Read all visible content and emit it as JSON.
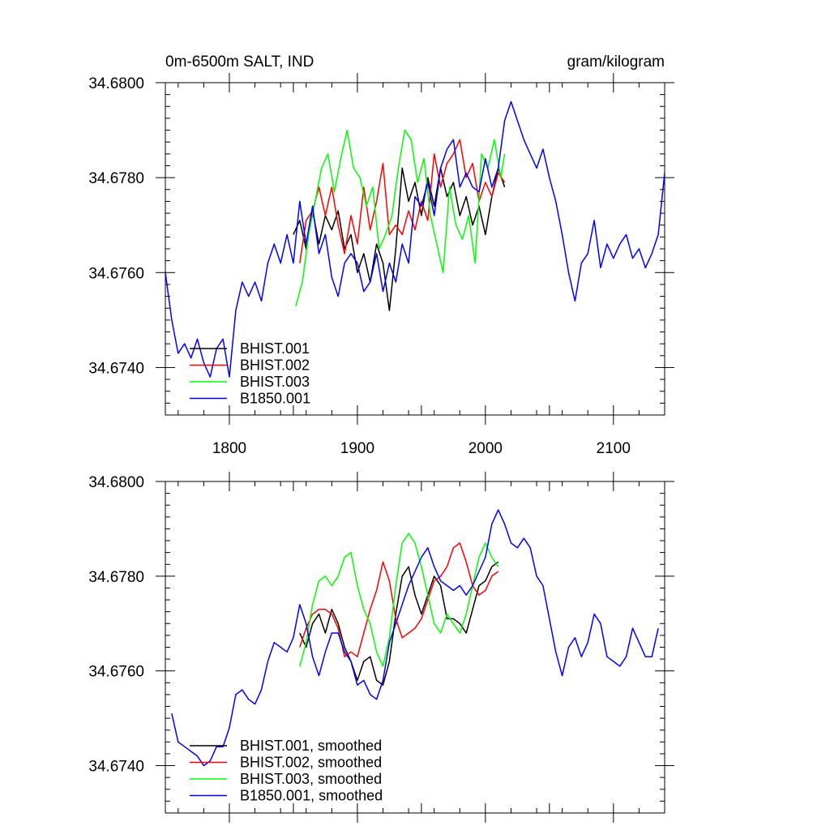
{
  "chart_data": [
    {
      "type": "line",
      "title_left": "0m-6500m SALT, IND",
      "title_right": "gram/kilogram",
      "xlim": [
        1750,
        2140
      ],
      "ylim": [
        34.673,
        34.68
      ],
      "xticks": [
        1800,
        1900,
        2000,
        2100
      ],
      "xtick_labels": [
        "1800",
        "1900",
        "2000",
        "2100"
      ],
      "yticks": [
        34.674,
        34.676,
        34.678,
        34.68
      ],
      "ytick_labels": [
        "34.6740",
        "34.6760",
        "34.6780",
        "34.6800"
      ],
      "legend_position": "bottom-left",
      "series": [
        {
          "name": "BHIST.001",
          "color": "#000000",
          "x": [
            1850,
            1855,
            1860,
            1865,
            1870,
            1875,
            1880,
            1885,
            1890,
            1895,
            1900,
            1905,
            1910,
            1915,
            1920,
            1925,
            1930,
            1935,
            1940,
            1945,
            1950,
            1955,
            1960,
            1965,
            1970,
            1975,
            1980,
            1985,
            1990,
            1995,
            2000,
            2005,
            2010,
            2015
          ],
          "y": [
            34.6768,
            34.6771,
            34.6765,
            34.6773,
            34.6766,
            34.6772,
            34.6769,
            34.6773,
            34.6765,
            34.6768,
            34.676,
            34.6764,
            34.6758,
            34.6766,
            34.6762,
            34.6752,
            34.6765,
            34.6782,
            34.6775,
            34.6779,
            34.6772,
            34.678,
            34.6774,
            34.6782,
            34.6776,
            34.6779,
            34.6772,
            34.6776,
            34.677,
            34.6774,
            34.6768,
            34.6776,
            34.6782,
            34.6778
          ]
        },
        {
          "name": "BHIST.002",
          "color": "#ff0000",
          "x": [
            1855,
            1860,
            1865,
            1870,
            1875,
            1880,
            1885,
            1890,
            1895,
            1900,
            1905,
            1910,
            1915,
            1920,
            1925,
            1930,
            1935,
            1940,
            1945,
            1950,
            1955,
            1960,
            1965,
            1970,
            1975,
            1980,
            1985,
            1990,
            1995,
            2000,
            2005,
            2010,
            2015
          ],
          "y": [
            34.6762,
            34.6771,
            34.6773,
            34.6778,
            34.6772,
            34.6778,
            34.677,
            34.6764,
            34.6772,
            34.6766,
            34.6778,
            34.6769,
            34.6775,
            34.6783,
            34.6768,
            34.677,
            34.6768,
            34.6773,
            34.6769,
            34.6775,
            34.6771,
            34.6785,
            34.6778,
            34.6783,
            34.6785,
            34.6788,
            34.678,
            34.6783,
            34.6775,
            34.6779,
            34.6776,
            34.6781,
            34.6779
          ]
        },
        {
          "name": "BHIST.003",
          "color": "#00ff00",
          "x": [
            1852,
            1857,
            1862,
            1867,
            1872,
            1877,
            1882,
            1887,
            1892,
            1897,
            1902,
            1907,
            1912,
            1917,
            1922,
            1927,
            1932,
            1937,
            1942,
            1947,
            1952,
            1957,
            1962,
            1967,
            1972,
            1977,
            1982,
            1987,
            1992,
            1997,
            2002,
            2007,
            2012,
            2015
          ],
          "y": [
            34.6753,
            34.6758,
            34.6768,
            34.6775,
            34.6782,
            34.6785,
            34.6777,
            34.6784,
            34.679,
            34.6782,
            34.678,
            34.6774,
            34.6778,
            34.6765,
            34.6768,
            34.6772,
            34.6782,
            34.679,
            34.6788,
            34.6779,
            34.6784,
            34.6772,
            34.6766,
            34.676,
            34.6778,
            34.677,
            34.6767,
            34.6772,
            34.6762,
            34.6785,
            34.6782,
            34.6788,
            34.678,
            34.6785
          ]
        },
        {
          "name": "B1850.001",
          "color": "#0000ff",
          "x": [
            1750,
            1755,
            1760,
            1765,
            1770,
            1775,
            1780,
            1785,
            1790,
            1795,
            1800,
            1805,
            1810,
            1815,
            1820,
            1825,
            1830,
            1835,
            1840,
            1845,
            1850,
            1855,
            1860,
            1865,
            1870,
            1875,
            1880,
            1885,
            1890,
            1895,
            1900,
            1905,
            1910,
            1915,
            1920,
            1925,
            1930,
            1935,
            1940,
            1945,
            1950,
            1955,
            1960,
            1965,
            1970,
            1975,
            1980,
            1985,
            1990,
            1995,
            2000,
            2005,
            2010,
            2015,
            2020,
            2025,
            2030,
            2035,
            2040,
            2045,
            2050,
            2055,
            2060,
            2065,
            2070,
            2075,
            2080,
            2085,
            2090,
            2095,
            2100,
            2105,
            2110,
            2115,
            2120,
            2125,
            2130,
            2135,
            2140
          ],
          "y": [
            34.676,
            34.675,
            34.6743,
            34.6745,
            34.6742,
            34.6746,
            34.6741,
            34.6738,
            34.6744,
            34.6746,
            34.6738,
            34.6752,
            34.6758,
            34.6755,
            34.6758,
            34.6754,
            34.6762,
            34.6766,
            34.6762,
            34.6768,
            34.6762,
            34.6775,
            34.6766,
            34.6774,
            34.6764,
            34.6768,
            34.6759,
            34.6755,
            34.6762,
            34.6764,
            34.6762,
            34.6756,
            34.6758,
            34.6764,
            34.6756,
            34.6762,
            34.6758,
            34.6766,
            34.6762,
            34.6776,
            34.6774,
            34.6779,
            34.6772,
            34.6782,
            34.6786,
            34.6788,
            34.6778,
            34.6781,
            34.6778,
            34.6777,
            34.6784,
            34.6778,
            34.6782,
            34.6792,
            34.6796,
            34.6792,
            34.6788,
            34.6785,
            34.6782,
            34.6786,
            34.678,
            34.6775,
            34.6768,
            34.676,
            34.6754,
            34.6762,
            34.6764,
            34.6771,
            34.6761,
            34.6766,
            34.6763,
            34.6766,
            34.6768,
            34.6763,
            34.6765,
            34.6761,
            34.6764,
            34.6768,
            34.6781
          ]
        }
      ]
    },
    {
      "type": "line",
      "xlim": [
        1750,
        2140
      ],
      "ylim": [
        34.673,
        34.68
      ],
      "xticks": [
        1800,
        1900,
        2000,
        2100
      ],
      "yticks": [
        34.674,
        34.676,
        34.678,
        34.68
      ],
      "ytick_labels": [
        "34.6740",
        "34.6760",
        "34.6780",
        "34.6800"
      ],
      "legend_position": "bottom-left",
      "series": [
        {
          "name": "BHIST.001, smoothed",
          "color": "#000000",
          "x": [
            1855,
            1860,
            1865,
            1870,
            1875,
            1880,
            1885,
            1890,
            1895,
            1900,
            1905,
            1910,
            1915,
            1920,
            1925,
            1930,
            1935,
            1940,
            1945,
            1950,
            1955,
            1960,
            1965,
            1970,
            1975,
            1980,
            1985,
            1990,
            1995,
            2000,
            2005,
            2010
          ],
          "y": [
            34.6768,
            34.6765,
            34.677,
            34.6772,
            34.6768,
            34.6773,
            34.677,
            34.6765,
            34.6762,
            34.6758,
            34.6762,
            34.6763,
            34.6758,
            34.6757,
            34.6762,
            34.6772,
            34.678,
            34.6782,
            34.6776,
            34.6772,
            34.6776,
            34.678,
            34.6778,
            34.6771,
            34.6771,
            34.677,
            34.6768,
            34.6773,
            34.6778,
            34.6779,
            34.6782,
            34.6783
          ]
        },
        {
          "name": "BHIST.002, smoothed",
          "color": "#ff0000",
          "x": [
            1855,
            1860,
            1865,
            1870,
            1875,
            1880,
            1885,
            1890,
            1895,
            1900,
            1905,
            1910,
            1915,
            1920,
            1925,
            1930,
            1935,
            1940,
            1945,
            1950,
            1955,
            1960,
            1965,
            1970,
            1975,
            1980,
            1985,
            1990,
            1995,
            2000,
            2005,
            2010
          ],
          "y": [
            34.6765,
            34.6769,
            34.6772,
            34.6773,
            34.6773,
            34.6772,
            34.6769,
            34.6763,
            34.6764,
            34.6763,
            34.6768,
            34.6773,
            34.6777,
            34.6783,
            34.6779,
            34.6771,
            34.6767,
            34.6768,
            34.6769,
            34.6771,
            34.6775,
            34.6779,
            34.678,
            34.6782,
            34.6786,
            34.6787,
            34.6783,
            34.6778,
            34.6776,
            34.6777,
            34.678,
            34.6781
          ]
        },
        {
          "name": "BHIST.003, smoothed",
          "color": "#00ff00",
          "x": [
            1855,
            1860,
            1865,
            1870,
            1875,
            1880,
            1885,
            1890,
            1895,
            1900,
            1905,
            1910,
            1915,
            1920,
            1925,
            1930,
            1935,
            1940,
            1945,
            1950,
            1955,
            1960,
            1965,
            1970,
            1975,
            1980,
            1985,
            1990,
            1995,
            2000,
            2005,
            2010
          ],
          "y": [
            34.6761,
            34.6766,
            34.6774,
            34.6779,
            34.678,
            34.6778,
            34.678,
            34.6784,
            34.6785,
            34.6778,
            34.6773,
            34.677,
            34.6764,
            34.6761,
            34.6767,
            34.6778,
            34.6787,
            34.6789,
            34.6787,
            34.6782,
            34.6776,
            34.677,
            34.6768,
            34.6772,
            34.677,
            34.6768,
            34.6772,
            34.6778,
            34.6784,
            34.6787,
            34.6784,
            34.6782
          ]
        },
        {
          "name": "B1850.001, smoothed",
          "color": "#0000ff",
          "x": [
            1755,
            1760,
            1765,
            1770,
            1775,
            1780,
            1785,
            1790,
            1795,
            1800,
            1805,
            1810,
            1815,
            1820,
            1825,
            1830,
            1835,
            1840,
            1845,
            1850,
            1855,
            1860,
            1865,
            1870,
            1875,
            1880,
            1885,
            1890,
            1895,
            1900,
            1905,
            1910,
            1915,
            1920,
            1925,
            1930,
            1935,
            1940,
            1945,
            1950,
            1955,
            1960,
            1965,
            1970,
            1975,
            1980,
            1985,
            1990,
            1995,
            2000,
            2005,
            2010,
            2015,
            2020,
            2025,
            2030,
            2035,
            2040,
            2045,
            2050,
            2055,
            2060,
            2065,
            2070,
            2075,
            2080,
            2085,
            2090,
            2095,
            2100,
            2105,
            2110,
            2115,
            2120,
            2125,
            2130,
            2135
          ],
          "y": [
            34.6751,
            34.6745,
            34.6744,
            34.6743,
            34.6742,
            34.674,
            34.6741,
            34.6744,
            34.6744,
            34.6748,
            34.6755,
            34.6756,
            34.6754,
            34.6753,
            34.6756,
            34.6762,
            34.6766,
            34.6765,
            34.6764,
            34.6767,
            34.6774,
            34.677,
            34.6763,
            34.6759,
            34.6764,
            34.6768,
            34.6768,
            34.6764,
            34.6762,
            34.6757,
            34.6758,
            34.6755,
            34.6754,
            34.6758,
            34.6766,
            34.677,
            34.6774,
            34.6778,
            34.6781,
            34.6784,
            34.6786,
            34.6782,
            34.6779,
            34.6778,
            34.6777,
            34.6778,
            34.6776,
            34.6778,
            34.6781,
            34.6784,
            34.6791,
            34.6794,
            34.6791,
            34.6787,
            34.6786,
            34.6788,
            34.6786,
            34.678,
            34.6778,
            34.6771,
            34.6764,
            34.6759,
            34.6765,
            34.6767,
            34.6763,
            34.6766,
            34.6772,
            34.677,
            34.6763,
            34.6762,
            34.6761,
            34.6763,
            34.6769,
            34.6766,
            34.6763,
            34.6763,
            34.6769
          ]
        }
      ]
    }
  ]
}
